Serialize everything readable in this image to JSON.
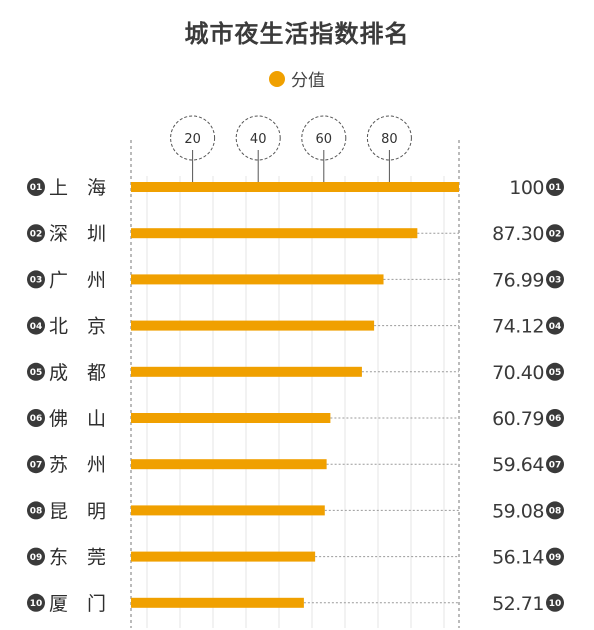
{
  "title": "城市夜生活指数排名",
  "legend": {
    "label": "分值",
    "color": "#f0a000"
  },
  "colors": {
    "bar": "#f0a000",
    "rank_badge": "#3a3a3a",
    "axis": "#777777",
    "grid": "#e6e6e6"
  },
  "chart_data": {
    "type": "bar",
    "orientation": "horizontal",
    "title": "城市夜生活指数排名",
    "xlim": [
      0,
      100
    ],
    "x_ticks": [
      "20",
      "40",
      "60",
      "80"
    ],
    "x_tick_values": [
      20,
      40,
      60,
      80
    ],
    "grid": true,
    "legend_position": "top-center",
    "categories": [
      "上　海",
      "深　圳",
      "广　州",
      "北　京",
      "成　都",
      "佛　山",
      "苏　州",
      "昆　明",
      "东　莞",
      "厦　门"
    ],
    "ranks": [
      "01",
      "02",
      "03",
      "04",
      "05",
      "06",
      "07",
      "08",
      "09",
      "10"
    ],
    "value_labels": [
      "100",
      "87.30",
      "76.99",
      "74.12",
      "70.40",
      "60.79",
      "59.64",
      "59.08",
      "56.14",
      "52.71"
    ],
    "series": [
      {
        "name": "分值",
        "values": [
          100,
          87.3,
          76.99,
          74.12,
          70.4,
          60.79,
          59.64,
          59.08,
          56.14,
          52.71
        ]
      }
    ]
  }
}
